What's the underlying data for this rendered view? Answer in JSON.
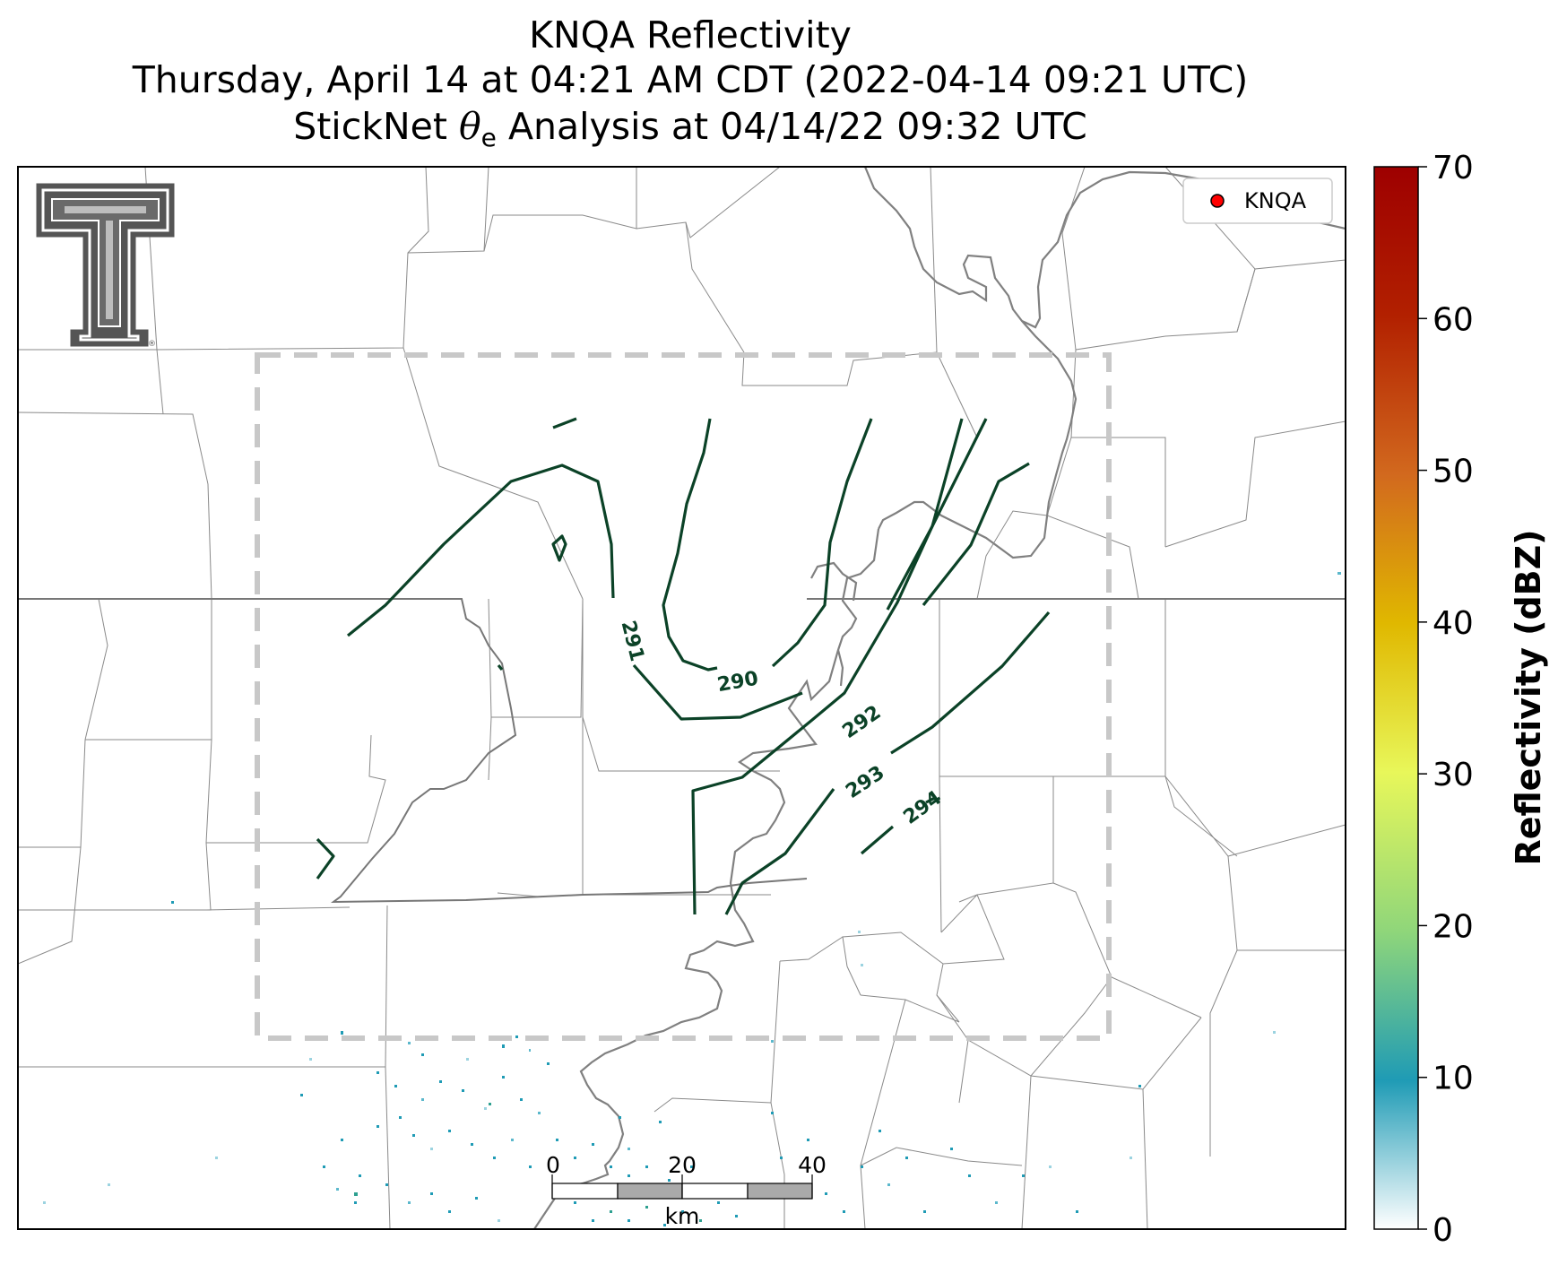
{
  "title": {
    "line1": "KNQA Reflectivity",
    "line2": "Thursday, April 14 at 04:21 AM CDT (2022-04-14 09:21 UTC)",
    "line3_prefix": "StickNet ",
    "line3_symbol": "θ",
    "line3_sub": "e",
    "line3_suffix": " Analysis at 04/14/22 09:32 UTC"
  },
  "legend": {
    "marker_label": "KNQA",
    "marker_color": "#ff0000"
  },
  "contours": {
    "color": "#0b4227",
    "labels": [
      "290",
      "291",
      "292",
      "293",
      "294"
    ]
  },
  "colorbar": {
    "label": "Reflectivity (dBZ)",
    "ticks": [
      "0",
      "10",
      "20",
      "30",
      "40",
      "50",
      "60",
      "70"
    ],
    "range": [
      0,
      70
    ],
    "colors": [
      "#ffffff",
      "#1f9bb5",
      "#8fd67a",
      "#e8f75a",
      "#e0b800",
      "#d2691e",
      "#b22000",
      "#9e0000"
    ]
  },
  "scalebar": {
    "ticks": [
      "0",
      "20",
      "40"
    ],
    "unit": "km"
  },
  "logo": {
    "name": "Texas Tech Double T",
    "mark": "®"
  },
  "analysis_box_color": "#c8c8c8"
}
